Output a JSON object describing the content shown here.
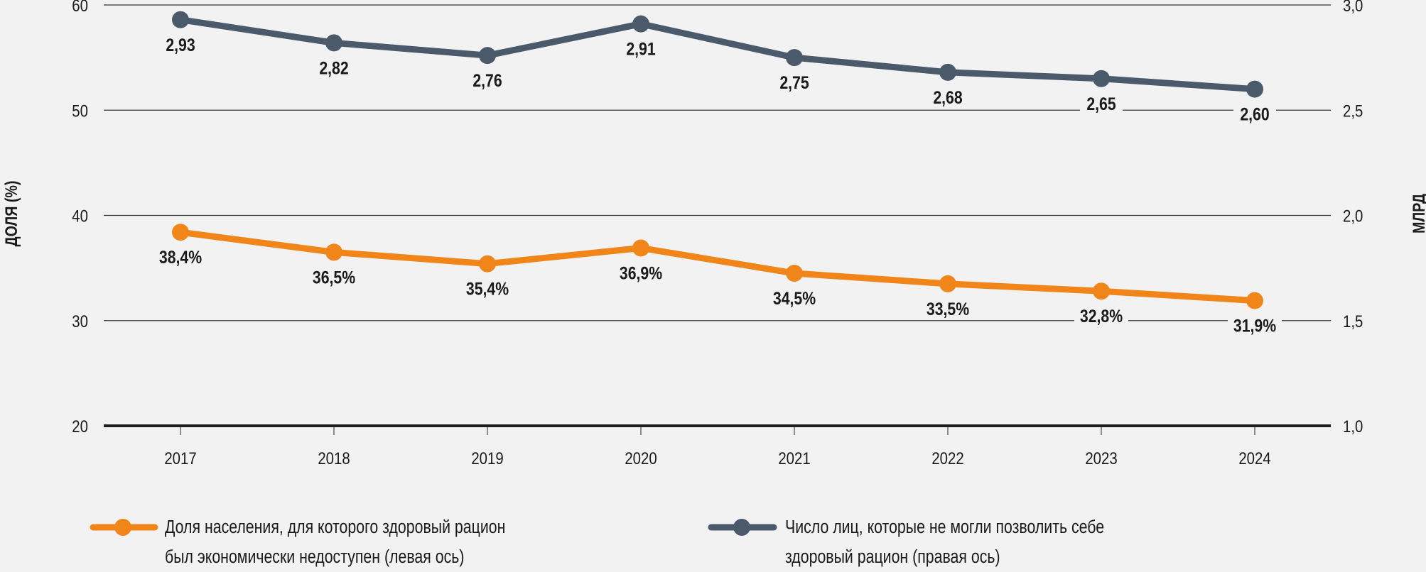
{
  "chart_data": {
    "type": "line",
    "title": "",
    "x": [
      "2017",
      "2018",
      "2019",
      "2020",
      "2021",
      "2022",
      "2023",
      "2024"
    ],
    "y_left": {
      "label": "ДОЛЯ (%)",
      "range": [
        20,
        60
      ],
      "ticks": [
        "20",
        "30",
        "40",
        "50",
        "60"
      ],
      "tick_values": [
        20,
        30,
        40,
        50,
        60
      ]
    },
    "y_right": {
      "label": "МЛРД",
      "range": [
        1.0,
        3.0
      ],
      "ticks": [
        "1,0",
        "1,5",
        "2,0",
        "2,5",
        "3,0"
      ],
      "tick_values": [
        1.0,
        1.5,
        2.0,
        2.5,
        3.0
      ]
    },
    "grid": true,
    "legend_position": "bottom",
    "series": [
      {
        "name": "Доля населения, для которого здоровый рацион был экономически недоступен (левая ось)",
        "legend_lines": [
          "Доля населения, для которого здоровый рацион",
          "был экономически недоступен (левая ось)"
        ],
        "axis": "left",
        "color": "#f0861a",
        "values": [
          38.4,
          36.5,
          35.4,
          36.9,
          34.5,
          33.5,
          32.8,
          31.9
        ],
        "labels": [
          "38,4%",
          "36,5%",
          "35,4%",
          "36,9%",
          "34,5%",
          "33,5%",
          "32,8%",
          "31,9%"
        ]
      },
      {
        "name": "Число лиц, которые не могли позволить себе здоровый рацион (правая ось)",
        "legend_lines": [
          "Число лиц, которые не могли позволить себе",
          "здоровый рацион (правая ось)"
        ],
        "axis": "right",
        "color": "#4a5a6b",
        "values": [
          2.93,
          2.82,
          2.76,
          2.91,
          2.75,
          2.68,
          2.65,
          2.6
        ],
        "labels": [
          "2,93",
          "2,82",
          "2,76",
          "2,91",
          "2,75",
          "2,68",
          "2,65",
          "2,60"
        ]
      }
    ]
  }
}
